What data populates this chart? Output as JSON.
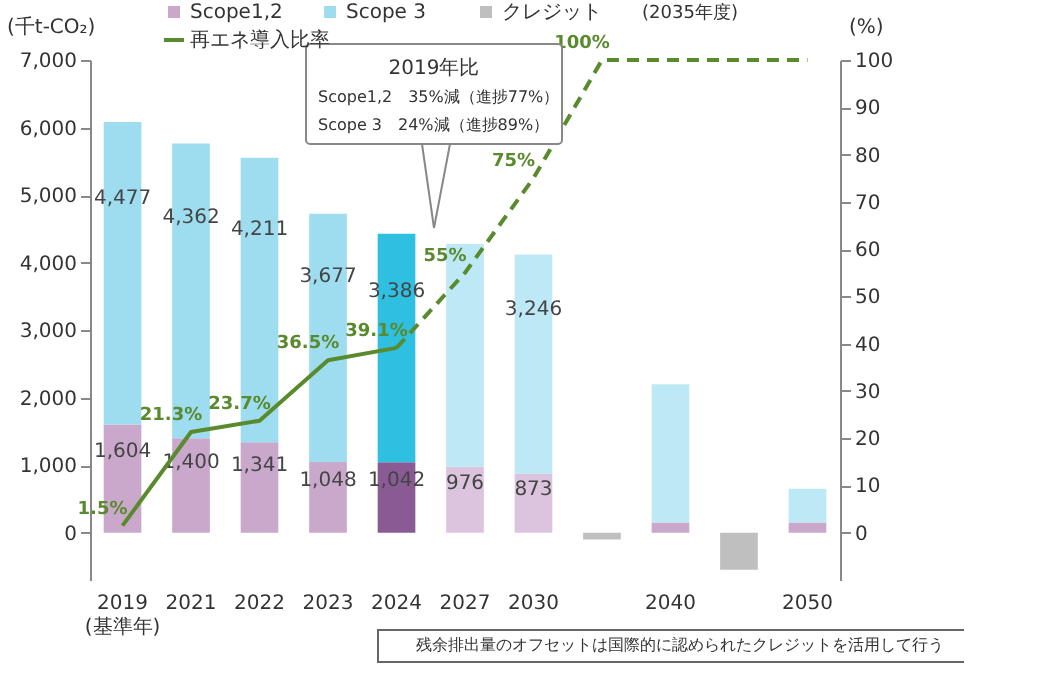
{
  "chart_data": {
    "type": "bar",
    "stacked": true,
    "ylabel": "(千t-CO₂)",
    "y2label": "(%)",
    "categories": [
      "2019\n(基準年)",
      "2021",
      "2022",
      "2023",
      "2024",
      "2027",
      "2030",
      null,
      "2040",
      null,
      "2050"
    ],
    "series": [
      {
        "name": "Scope1,2",
        "color": "#c9a8cc",
        "colors": [
          "#c9a8cc",
          "#c9a8cc",
          "#c9a8cc",
          "#c9a8cc",
          "#8a5a94",
          "#dcc4de",
          "#dcc4de",
          null,
          "#c9a8cc",
          null,
          "#c9a8cc"
        ],
        "values": [
          1604,
          1400,
          1341,
          1048,
          1042,
          976,
          873,
          null,
          150,
          null,
          150
        ],
        "value_labels": [
          "1,604",
          "1,400",
          "1,341",
          "1,048",
          "1,042",
          "976",
          "873",
          null,
          null,
          null,
          null
        ]
      },
      {
        "name": "Scope 3",
        "color": "#9edcf0",
        "colors": [
          "#9edcf0",
          "#9edcf0",
          "#9edcf0",
          "#9edcf0",
          "#2fbfe0",
          "#bde8f5",
          "#bde8f5",
          null,
          "#bde8f5",
          null,
          "#bde8f5"
        ],
        "values": [
          4477,
          4362,
          4211,
          3677,
          3386,
          3300,
          3246,
          null,
          2050,
          null,
          500
        ],
        "value_labels": [
          "4,477",
          "4,362",
          "4,211",
          "3,677",
          "3,386",
          null,
          "3,246",
          null,
          null,
          null,
          null
        ]
      },
      {
        "name": "クレジット",
        "color": "#bfbfbf",
        "values": [
          null,
          null,
          null,
          null,
          null,
          null,
          null,
          -100,
          null,
          -550,
          null
        ]
      },
      {
        "name": "再エネ導入比率",
        "type": "line",
        "axis": "y2",
        "color": "#5a8a2e",
        "line_style": "solid",
        "values": [
          1.5,
          21.3,
          23.7,
          36.5,
          39.1,
          null,
          null,
          null,
          null,
          null,
          null
        ],
        "value_labels": [
          "1.5%",
          "21.3%",
          "23.7%",
          "36.5%",
          "39.1%",
          null,
          null,
          null,
          null,
          null,
          null
        ]
      },
      {
        "type": "line",
        "axis": "y2",
        "color": "#5a8a2e",
        "line_style": "dashed",
        "values": [
          null,
          null,
          null,
          null,
          39.1,
          55,
          75,
          100,
          100,
          100,
          100
        ],
        "value_labels": [
          null,
          null,
          null,
          null,
          null,
          "55%",
          "75%",
          "100%",
          null,
          null,
          null
        ]
      }
    ],
    "ylim": [
      -700,
      7000
    ],
    "yticks": [
      0,
      {
        "value": 1000,
        "label": "1,000"
      },
      {
        "value": 2000,
        "label": "2,000"
      },
      {
        "value": 3000,
        "label": "3,000"
      },
      {
        "value": 4000,
        "label": "4,000"
      },
      {
        "value": 5000,
        "label": "5,000"
      },
      {
        "value": 6000,
        "label": "6,000"
      },
      {
        "value": 7000,
        "label": "7,000"
      }
    ],
    "y2lim": [
      -10,
      100
    ],
    "y2ticks": [
      0,
      10,
      20,
      30,
      40,
      50,
      60,
      70,
      80,
      90,
      100
    ],
    "marker": "none",
    "grid": false,
    "legend": "top left",
    "annotations": [
      "2019年比",
      "Scope1,2　35%減（進捗77%）",
      "Scope 3　24%減（進捗89%）",
      "(2035年度)",
      "残余排出量のオフセットは国際的に認められたクレジットを活用して行う"
    ]
  }
}
